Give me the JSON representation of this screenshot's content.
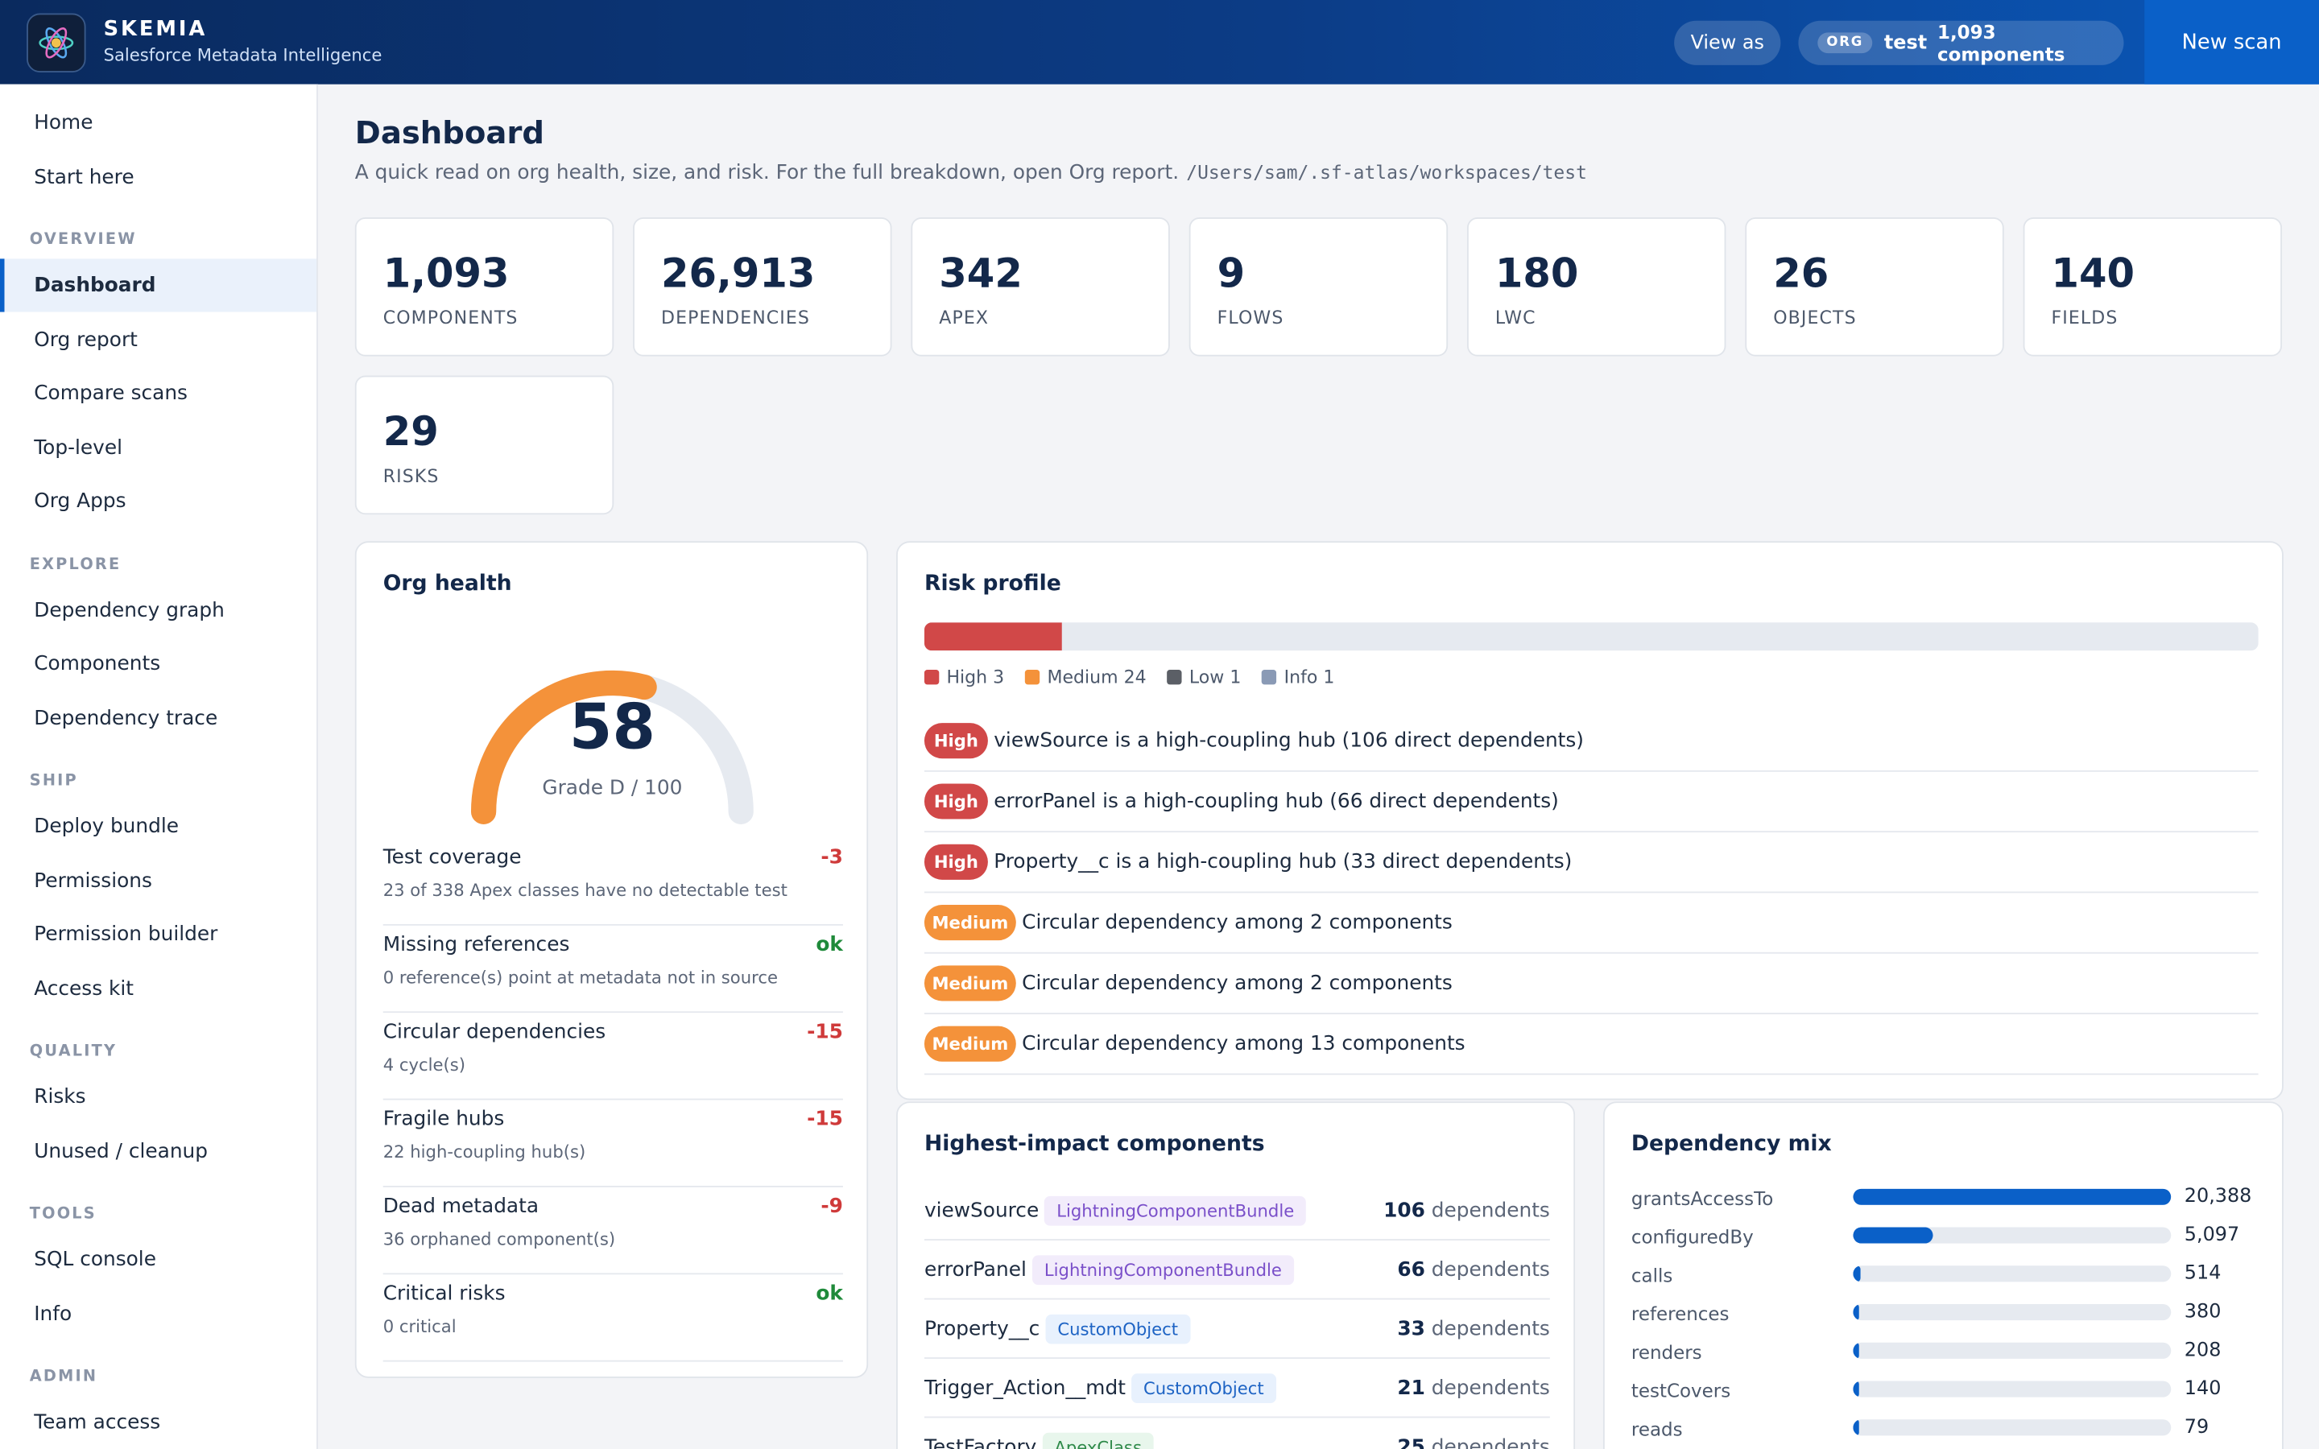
{
  "header": {
    "brand_name": "SKEMIA",
    "brand_sub": "Salesforce Metadata Intelligence",
    "view_as": "View as",
    "org_tag": "ORG",
    "org_name": "test",
    "org_components": "1,093 components",
    "new_scan": "New scan",
    "logo_icon": "atom-icon"
  },
  "sidebar": {
    "top": [
      {
        "label": "Home"
      },
      {
        "label": "Start here"
      }
    ],
    "sections": [
      {
        "title": "OVERVIEW",
        "items": [
          {
            "label": "Dashboard",
            "active": true
          },
          {
            "label": "Org report"
          },
          {
            "label": "Compare scans"
          },
          {
            "label": "Top-level"
          },
          {
            "label": "Org Apps"
          }
        ]
      },
      {
        "title": "EXPLORE",
        "items": [
          {
            "label": "Dependency graph"
          },
          {
            "label": "Components"
          },
          {
            "label": "Dependency trace"
          }
        ]
      },
      {
        "title": "SHIP",
        "items": [
          {
            "label": "Deploy bundle"
          },
          {
            "label": "Permissions"
          },
          {
            "label": "Permission builder"
          },
          {
            "label": "Access kit"
          }
        ]
      },
      {
        "title": "QUALITY",
        "items": [
          {
            "label": "Risks"
          },
          {
            "label": "Unused / cleanup"
          }
        ]
      },
      {
        "title": "TOOLS",
        "items": [
          {
            "label": "SQL console"
          },
          {
            "label": "Info"
          }
        ]
      },
      {
        "title": "ADMIN",
        "items": [
          {
            "label": "Team access"
          }
        ]
      }
    ]
  },
  "page": {
    "title": "Dashboard",
    "subtitle": "A quick read on org health, size, and risk. For the full breakdown, open Org report.",
    "path": "/Users/sam/.sf-atlas/workspaces/test"
  },
  "stats": [
    {
      "value": "1,093",
      "label": "COMPONENTS"
    },
    {
      "value": "26,913",
      "label": "DEPENDENCIES"
    },
    {
      "value": "342",
      "label": "APEX"
    },
    {
      "value": "9",
      "label": "FLOWS"
    },
    {
      "value": "180",
      "label": "LWC"
    },
    {
      "value": "26",
      "label": "OBJECTS"
    },
    {
      "value": "140",
      "label": "FIELDS"
    },
    {
      "value": "29",
      "label": "RISKS"
    }
  ],
  "org_health": {
    "title": "Org health",
    "score": "58",
    "score_fraction": 0.58,
    "grade": "Grade D / 100",
    "gauge_color": "#f4923a",
    "rows": [
      {
        "label": "Test coverage",
        "detail": "23 of 338 Apex classes have no detectable test",
        "score": "-3",
        "status": "neg"
      },
      {
        "label": "Missing references",
        "detail": "0 reference(s) point at metadata not in source",
        "score": "ok",
        "status": "ok"
      },
      {
        "label": "Circular dependencies",
        "detail": "4 cycle(s)",
        "score": "-15",
        "status": "neg"
      },
      {
        "label": "Fragile hubs",
        "detail": "22 high-coupling hub(s)",
        "score": "-15",
        "status": "neg"
      },
      {
        "label": "Dead metadata",
        "detail": "36 orphaned component(s)",
        "score": "-9",
        "status": "neg"
      },
      {
        "label": "Critical risks",
        "detail": "0 critical",
        "score": "ok",
        "status": "ok"
      }
    ]
  },
  "risk_profile": {
    "title": "Risk profile",
    "bar": [
      {
        "name": "High",
        "count": 3,
        "fraction": 0.103,
        "color": "#d14848"
      },
      {
        "name": "Medium",
        "count": 24,
        "fraction": 0,
        "color": "#f4923a"
      },
      {
        "name": "Low",
        "count": 1,
        "fraction": 0,
        "color": "#5b5f66"
      },
      {
        "name": "Info",
        "count": 1,
        "fraction": 0,
        "color": "#8a9ab5"
      }
    ],
    "legend": [
      {
        "label": "High 3",
        "color": "#d14848"
      },
      {
        "label": "Medium 24",
        "color": "#f4923a"
      },
      {
        "label": "Low 1",
        "color": "#5b5f66"
      },
      {
        "label": "Info 1",
        "color": "#8a9ab5"
      }
    ],
    "items": [
      {
        "severity": "High",
        "text": "viewSource is a high-coupling hub (106 direct dependents)"
      },
      {
        "severity": "High",
        "text": "errorPanel is a high-coupling hub (66 direct dependents)"
      },
      {
        "severity": "High",
        "text": "Property__c is a high-coupling hub (33 direct dependents)"
      },
      {
        "severity": "Medium",
        "text": "Circular dependency among 2 components"
      },
      {
        "severity": "Medium",
        "text": "Circular dependency among 2 components"
      },
      {
        "severity": "Medium",
        "text": "Circular dependency among 13 components"
      }
    ]
  },
  "highest_impact": {
    "title": "Highest-impact components",
    "dependents_word": "dependents",
    "items": [
      {
        "name": "viewSource",
        "type": "LightningComponentBundle",
        "type_class": "t-lcb",
        "count": "106"
      },
      {
        "name": "errorPanel",
        "type": "LightningComponentBundle",
        "type_class": "t-lcb",
        "count": "66"
      },
      {
        "name": "Property__c",
        "type": "CustomObject",
        "type_class": "t-co",
        "count": "33"
      },
      {
        "name": "Trigger_Action__mdt",
        "type": "CustomObject",
        "type_class": "t-co",
        "count": "21"
      },
      {
        "name": "TestFactory",
        "type": "ApexClass",
        "type_class": "t-apex",
        "count": "25"
      }
    ]
  },
  "dependency_mix": {
    "title": "Dependency mix",
    "max": 20388,
    "items": [
      {
        "label": "grantsAccessTo",
        "value": 20388,
        "display": "20,388"
      },
      {
        "label": "configuredBy",
        "value": 5097,
        "display": "5,097"
      },
      {
        "label": "calls",
        "value": 514,
        "display": "514"
      },
      {
        "label": "references",
        "value": 380,
        "display": "380"
      },
      {
        "label": "renders",
        "value": 208,
        "display": "208"
      },
      {
        "label": "testCovers",
        "value": 140,
        "display": "140"
      },
      {
        "label": "reads",
        "value": 79,
        "display": "79"
      }
    ]
  }
}
